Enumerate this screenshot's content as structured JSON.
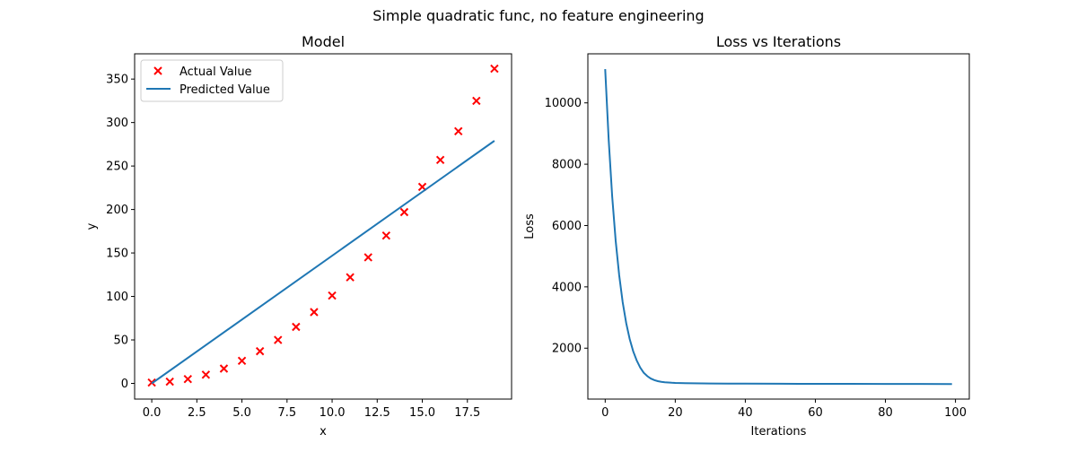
{
  "figure": {
    "suptitle": "Simple quadratic func, no feature engineering"
  },
  "chart_data": [
    {
      "type": "scatter",
      "title": "Model",
      "xlabel": "x",
      "ylabel": "y",
      "xlim": [
        -0.95,
        19.95
      ],
      "ylim": [
        -18.05,
        379.05
      ],
      "xticks": [
        0.0,
        2.5,
        5.0,
        7.5,
        10.0,
        12.5,
        15.0,
        17.5
      ],
      "xtick_labels": [
        "0.0",
        "2.5",
        "5.0",
        "7.5",
        "10.0",
        "12.5",
        "15.0",
        "17.5"
      ],
      "yticks": [
        0,
        50,
        100,
        150,
        200,
        250,
        300,
        350
      ],
      "ytick_labels": [
        "0",
        "50",
        "100",
        "150",
        "200",
        "250",
        "300",
        "350"
      ],
      "grid": false,
      "legend_position": "top-left",
      "series": [
        {
          "name": "Actual Value",
          "kind": "scatter",
          "marker": "x",
          "color": "#ff0000",
          "x": [
            0,
            1,
            2,
            3,
            4,
            5,
            6,
            7,
            8,
            9,
            10,
            11,
            12,
            13,
            14,
            15,
            16,
            17,
            18,
            19
          ],
          "y": [
            1,
            2,
            5,
            10,
            17,
            26,
            37,
            50,
            65,
            82,
            101,
            122,
            145,
            170,
            197,
            226,
            257,
            290,
            325,
            362
          ]
        },
        {
          "name": "Predicted Value",
          "kind": "line",
          "color": "#1f77b4",
          "x": [
            0,
            19
          ],
          "y": [
            0,
            279
          ]
        }
      ]
    },
    {
      "type": "line",
      "title": "Loss vs Iterations",
      "xlabel": "Iterations",
      "ylabel": "Loss",
      "xlim": [
        -4.95,
        103.95
      ],
      "ylim": [
        340,
        11600
      ],
      "xticks": [
        0,
        20,
        40,
        60,
        80,
        100
      ],
      "xtick_labels": [
        "0",
        "20",
        "40",
        "60",
        "80",
        "100"
      ],
      "yticks": [
        2000,
        4000,
        6000,
        8000,
        10000
      ],
      "ytick_labels": [
        "2000",
        "4000",
        "6000",
        "8000",
        "10000"
      ],
      "grid": false,
      "series": [
        {
          "color": "#1f77b4",
          "x": [
            0,
            1,
            2,
            3,
            4,
            5,
            6,
            7,
            8,
            9,
            10,
            11,
            12,
            13,
            14,
            15,
            16,
            17,
            18,
            19,
            20,
            25,
            30,
            35,
            40,
            50,
            60,
            70,
            80,
            90,
            99
          ],
          "y": [
            11100,
            8800,
            6950,
            5500,
            4380,
            3500,
            2820,
            2300,
            1900,
            1600,
            1370,
            1200,
            1090,
            1010,
            960,
            925,
            905,
            890,
            880,
            872,
            866,
            855,
            848,
            845,
            843,
            840,
            838,
            836,
            834,
            833,
            832
          ]
        }
      ]
    }
  ]
}
